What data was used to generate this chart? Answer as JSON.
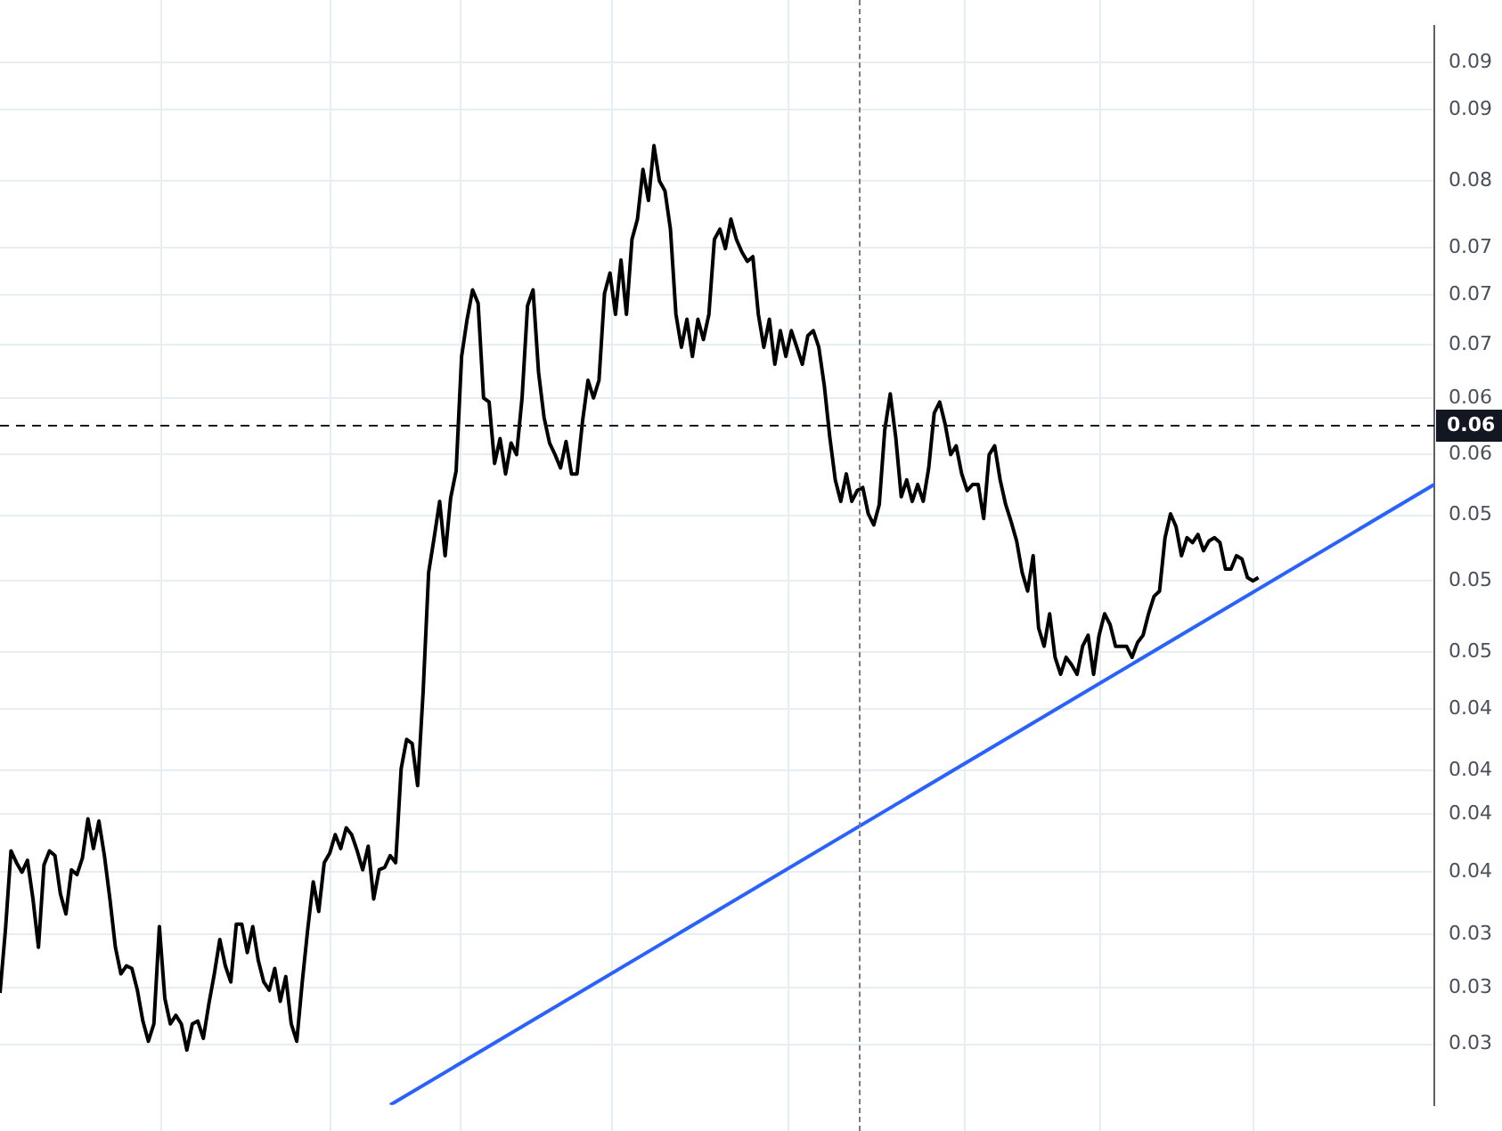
{
  "chart_data": {
    "type": "line",
    "log": true,
    "grid": "y",
    "legend": false,
    "tick_labels": "y",
    "marker": "none",
    "line_style": "solid",
    "categories": [
      null,
      null,
      null,
      null,
      null,
      null,
      null,
      null,
      null,
      null,
      null,
      null,
      null,
      null,
      null,
      null,
      null,
      null,
      null,
      null,
      null,
      null,
      null,
      null,
      null,
      null,
      null,
      null,
      null,
      null,
      null,
      null,
      null,
      null,
      null,
      null,
      null,
      null,
      null,
      null,
      null,
      null,
      null,
      null,
      null,
      null,
      null,
      null,
      null,
      null,
      null,
      null,
      null,
      null,
      null,
      null,
      null,
      null,
      null,
      null,
      null,
      null,
      null,
      null,
      null,
      null,
      null,
      null,
      null,
      null,
      null,
      null,
      null,
      null,
      null,
      null,
      null,
      null,
      null,
      null,
      null,
      null,
      null,
      null,
      null,
      null,
      null,
      null,
      null,
      null,
      null,
      null,
      null,
      null,
      null,
      null,
      null,
      null,
      null,
      null,
      null,
      null,
      null,
      null,
      null,
      null,
      null,
      null,
      null,
      null,
      null,
      null,
      null,
      null,
      null,
      null,
      null,
      null,
      null,
      null,
      null,
      null,
      null,
      null,
      null,
      null,
      null,
      null,
      null,
      null,
      null,
      null,
      null,
      null,
      null,
      null,
      null,
      null,
      null,
      null,
      null,
      null,
      null,
      null,
      null,
      null,
      null,
      null,
      null,
      null,
      null,
      null,
      null,
      null,
      null,
      null,
      null,
      null,
      null,
      null,
      null,
      null,
      null,
      null,
      null,
      null,
      null,
      null,
      null,
      null,
      null,
      null,
      null,
      null,
      null,
      null,
      null,
      null,
      null,
      null,
      null,
      null,
      null,
      null,
      null,
      null,
      null,
      null,
      null,
      null,
      null,
      null,
      null,
      null,
      null,
      null,
      null,
      null,
      null,
      null,
      null,
      null,
      null,
      null,
      null,
      null,
      null,
      null,
      null,
      null,
      null,
      null,
      null,
      null,
      null,
      null,
      null,
      null,
      null,
      null,
      null,
      null,
      null,
      null,
      null,
      null,
      null,
      null,
      null,
      null,
      null,
      null,
      null,
      null,
      null,
      null,
      null,
      null,
      null,
      null,
      null,
      null,
      null,
      null,
      null,
      null,
      null,
      null,
      null,
      null,
      null,
      null,
      null,
      null,
      null,
      null,
      null,
      null,
      null,
      null,
      null,
      null
    ],
    "ylim": [
      0.027,
      0.096
    ],
    "yticks": [
      {
        "value": 0.092,
        "label": "0.09"
      },
      {
        "value": 0.087,
        "label": "0.09"
      },
      {
        "value": 0.08,
        "label": "0.08"
      },
      {
        "value": 0.074,
        "label": "0.07"
      },
      {
        "value": 0.07,
        "label": "0.07"
      },
      {
        "value": 0.066,
        "label": "0.07"
      },
      {
        "value": 0.062,
        "label": "0.06"
      },
      {
        "value": 0.058,
        "label": "0.06"
      },
      {
        "value": 0.054,
        "label": "0.05"
      },
      {
        "value": 0.05,
        "label": "0.05"
      },
      {
        "value": 0.046,
        "label": "0.05"
      },
      {
        "value": 0.043,
        "label": "0.04"
      },
      {
        "value": 0.04,
        "label": "0.04"
      },
      {
        "value": 0.038,
        "label": "0.04"
      },
      {
        "value": 0.0355,
        "label": "0.04"
      },
      {
        "value": 0.033,
        "label": "0.03"
      },
      {
        "value": 0.031,
        "label": "0.03"
      },
      {
        "value": 0.029,
        "label": "0.03"
      }
    ],
    "ref_lines": [
      {
        "axis": "y",
        "value": 0.06,
        "label": "0.06",
        "color": "#131722",
        "line_style": "dashed"
      }
    ],
    "series": [
      {
        "color": "#000000",
        "values": [
          0.0308,
          0.0332,
          0.0364,
          0.0359,
          0.0355,
          0.036,
          0.0344,
          0.0325,
          0.0358,
          0.0364,
          0.0362,
          0.0346,
          0.0338,
          0.0356,
          0.0354,
          0.0361,
          0.0378,
          0.0365,
          0.0377,
          0.0362,
          0.0344,
          0.0325,
          0.0315,
          0.0318,
          0.0317,
          0.0309,
          0.0298,
          0.0291,
          0.0297,
          0.0333,
          0.0306,
          0.0297,
          0.03,
          0.0297,
          0.0288,
          0.0297,
          0.0298,
          0.0292,
          0.0304,
          0.0315,
          0.0328,
          0.0318,
          0.0312,
          0.0334,
          0.0334,
          0.0323,
          0.0333,
          0.032,
          0.0312,
          0.0309,
          0.0317,
          0.0305,
          0.0314,
          0.0297,
          0.0291,
          0.0312,
          0.0332,
          0.0351,
          0.0339,
          0.0359,
          0.0363,
          0.0371,
          0.0365,
          0.0374,
          0.0371,
          0.0364,
          0.0356,
          0.0366,
          0.0344,
          0.0356,
          0.0357,
          0.0362,
          0.0359,
          0.0401,
          0.0415,
          0.0413,
          0.0393,
          0.0439,
          0.0505,
          0.0526,
          0.0549,
          0.0515,
          0.0551,
          0.0569,
          0.0651,
          0.068,
          0.0704,
          0.0693,
          0.062,
          0.0617,
          0.0574,
          0.0591,
          0.0567,
          0.0588,
          0.058,
          0.062,
          0.0691,
          0.0704,
          0.0639,
          0.0606,
          0.0588,
          0.058,
          0.0571,
          0.0589,
          0.0567,
          0.0567,
          0.0603,
          0.0633,
          0.062,
          0.0633,
          0.0701,
          0.0718,
          0.0684,
          0.0729,
          0.0684,
          0.0747,
          0.0765,
          0.0811,
          0.0782,
          0.0834,
          0.08,
          0.0791,
          0.0756,
          0.0684,
          0.0658,
          0.068,
          0.0651,
          0.068,
          0.0664,
          0.0684,
          0.0747,
          0.0756,
          0.0739,
          0.0765,
          0.0747,
          0.0736,
          0.0728,
          0.0732,
          0.0684,
          0.0658,
          0.068,
          0.0645,
          0.0671,
          0.0651,
          0.0671,
          0.0658,
          0.0645,
          0.0667,
          0.0671,
          0.0658,
          0.0629,
          0.0592,
          0.0563,
          0.0549,
          0.0567,
          0.0549,
          0.0556,
          0.0558,
          0.0541,
          0.0534,
          0.0547,
          0.0597,
          0.0623,
          0.0592,
          0.0552,
          0.0563,
          0.0549,
          0.056,
          0.0549,
          0.0571,
          0.0609,
          0.0617,
          0.0601,
          0.058,
          0.0586,
          0.0567,
          0.0556,
          0.056,
          0.056,
          0.0538,
          0.058,
          0.0586,
          0.0563,
          0.0547,
          0.0536,
          0.0524,
          0.0505,
          0.0494,
          0.0515,
          0.0473,
          0.0463,
          0.0481,
          0.0457,
          0.0448,
          0.0457,
          0.0453,
          0.0448,
          0.0463,
          0.0469,
          0.0448,
          0.0469,
          0.0481,
          0.0475,
          0.0463,
          0.0463,
          0.0463,
          0.0457,
          0.0465,
          0.0469,
          0.0481,
          0.0491,
          0.0494,
          0.0526,
          0.0541,
          0.0533,
          0.0515,
          0.0526,
          0.0523,
          0.0528,
          0.0518,
          0.0524,
          0.0526,
          0.0523,
          0.0507,
          0.0507,
          0.0515,
          0.0513,
          0.0502,
          0.05,
          0.0502,
          null,
          null,
          null,
          null,
          null,
          null,
          null,
          null,
          null,
          null,
          null,
          null,
          null,
          null,
          null,
          null,
          null,
          null,
          null,
          null,
          null,
          null,
          null,
          null,
          null,
          null,
          null,
          null,
          null,
          null,
          null,
          null
        ]
      },
      {
        "color": "#2962ff",
        "values": [
          null,
          null,
          null,
          null,
          null,
          null,
          null,
          null,
          null,
          null,
          null,
          null,
          null,
          null,
          null,
          null,
          null,
          null,
          null,
          null,
          null,
          null,
          null,
          null,
          null,
          null,
          null,
          null,
          null,
          null,
          null,
          null,
          null,
          null,
          null,
          null,
          null,
          null,
          null,
          null,
          null,
          null,
          null,
          null,
          null,
          null,
          null,
          null,
          null,
          null,
          null,
          null,
          null,
          null,
          null,
          null,
          null,
          null,
          null,
          null,
          null,
          null,
          null,
          null,
          null,
          null,
          null,
          null,
          null,
          null,
          null,
          0.027,
          null,
          null,
          null,
          null,
          null,
          null,
          null,
          null,
          null,
          null,
          null,
          null,
          null,
          null,
          null,
          null,
          null,
          null,
          null,
          null,
          null,
          null,
          null,
          null,
          null,
          null,
          null,
          null,
          null,
          null,
          null,
          null,
          null,
          null,
          null,
          null,
          null,
          null,
          null,
          null,
          null,
          null,
          null,
          null,
          null,
          null,
          null,
          null,
          null,
          null,
          null,
          null,
          null,
          null,
          null,
          null,
          null,
          null,
          null,
          null,
          null,
          null,
          null,
          null,
          null,
          null,
          null,
          null,
          null,
          null,
          null,
          null,
          null,
          null,
          null,
          null,
          null,
          null,
          null,
          null,
          null,
          null,
          null,
          null,
          null,
          null,
          null,
          null,
          null,
          null,
          null,
          null,
          null,
          null,
          null,
          null,
          null,
          null,
          null,
          null,
          null,
          null,
          null,
          null,
          null,
          null,
          null,
          null,
          null,
          null,
          null,
          null,
          null,
          null,
          null,
          null,
          null,
          null,
          null,
          null,
          null,
          null,
          null,
          null,
          null,
          null,
          null,
          null,
          null,
          null,
          null,
          null,
          null,
          null,
          null,
          null,
          null,
          null,
          null,
          null,
          null,
          null,
          null,
          null,
          null,
          null,
          null,
          null,
          null,
          null,
          null,
          null,
          null,
          null,
          null,
          null,
          null,
          null,
          null,
          null,
          null,
          null,
          null,
          null,
          null,
          null,
          null,
          null,
          null,
          null,
          null,
          null,
          null,
          null,
          null,
          null,
          null,
          null,
          null,
          null,
          null,
          null,
          null,
          null,
          null,
          null,
          null,
          null,
          null,
          0.056
        ]
      }
    ]
  }
}
